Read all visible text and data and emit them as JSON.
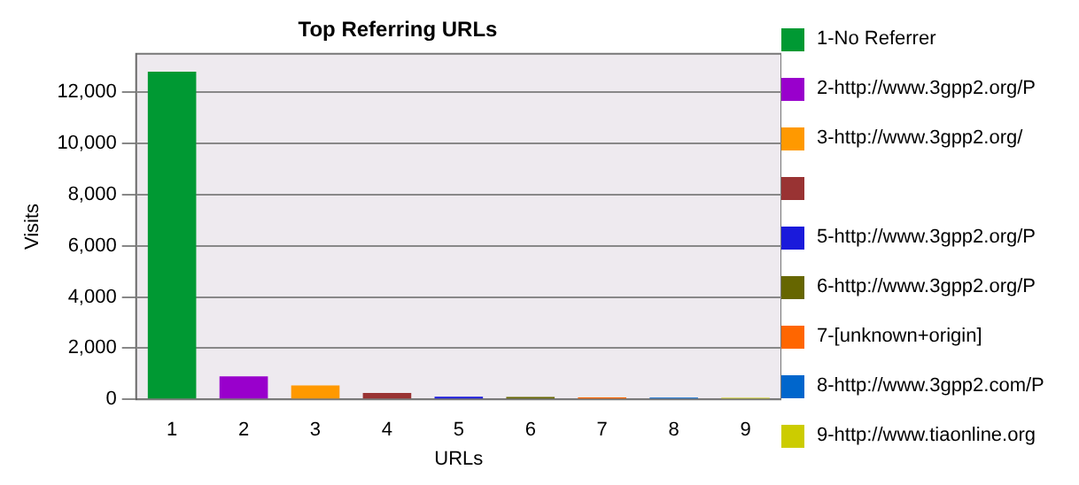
{
  "chart_data": {
    "type": "bar",
    "title": "Top Referring URLs",
    "xlabel": "URLs",
    "ylabel": "Visits",
    "categories": [
      "1",
      "2",
      "3",
      "4",
      "5",
      "6",
      "7",
      "8",
      "9"
    ],
    "series": [
      {
        "name": "1-No Referrer",
        "color": "#009933",
        "values": [
          12800,
          null,
          null,
          null,
          null,
          null,
          null,
          null,
          null
        ]
      },
      {
        "name": "2-http://www.3gpp2.org/P",
        "color": "#9900cc",
        "values": [
          null,
          900,
          null,
          null,
          null,
          null,
          null,
          null,
          null
        ]
      },
      {
        "name": "3-http://www.3gpp2.org/",
        "color": "#ff9900",
        "values": [
          null,
          null,
          540,
          null,
          null,
          null,
          null,
          null,
          null
        ]
      },
      {
        "color": "#993333",
        "values": [
          null,
          null,
          null,
          250,
          null,
          null,
          null,
          null,
          null
        ]
      },
      {
        "name": "5-http://www.3gpp2.org/P",
        "color": "#1a1adb",
        "values": [
          null,
          null,
          null,
          null,
          100,
          null,
          null,
          null,
          null
        ]
      },
      {
        "name": "6-http://www.3gpp2.org/P",
        "color": "#666600",
        "values": [
          null,
          null,
          null,
          null,
          null,
          90,
          null,
          null,
          null
        ]
      },
      {
        "name": "7-[unknown+origin]",
        "color": "#ff6600",
        "values": [
          null,
          null,
          null,
          null,
          null,
          null,
          80,
          null,
          null
        ]
      },
      {
        "name": "8-http://www.3gpp2.com/P",
        "color": "#0066cc",
        "values": [
          null,
          null,
          null,
          null,
          null,
          null,
          null,
          70,
          null
        ]
      },
      {
        "name": "9-http://www.tiaonline.org",
        "color": "#cccc00",
        "values": [
          null,
          null,
          null,
          null,
          null,
          null,
          null,
          null,
          60
        ]
      }
    ],
    "ylim": [
      0,
      13500
    ],
    "yticks": [
      0,
      {
        "value": 2000,
        "label": "2,000"
      },
      {
        "value": 4000,
        "label": "4,000"
      },
      {
        "value": 6000,
        "label": "6,000"
      },
      {
        "value": 8000,
        "label": "8,000"
      },
      {
        "value": 10000,
        "label": "10,000"
      },
      {
        "value": 12000,
        "label": "12,000"
      }
    ],
    "grid": "y",
    "legend": "right"
  }
}
